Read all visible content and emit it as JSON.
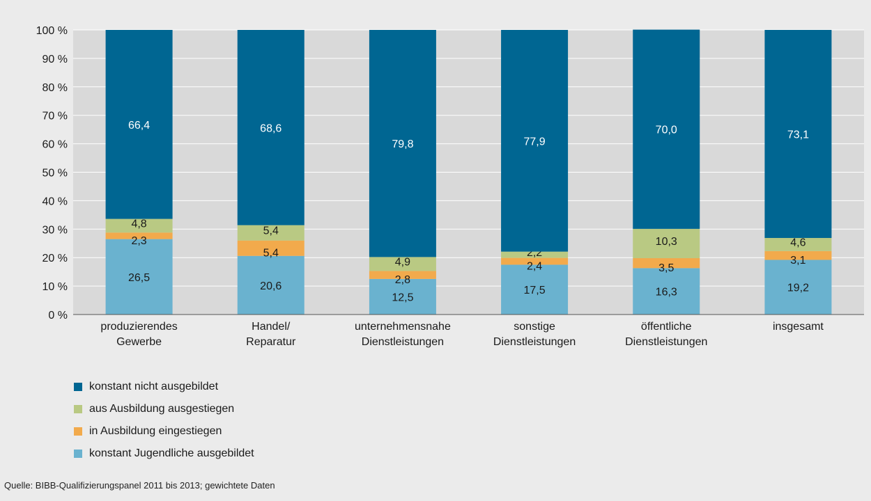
{
  "chart_data": {
    "type": "bar",
    "stacked": true,
    "categories": [
      [
        "produzierendes",
        "Gewerbe"
      ],
      [
        "Handel/",
        "Reparatur"
      ],
      [
        "unternehmensnahe",
        "Dienstleistungen"
      ],
      [
        "sonstige",
        "Dienstleistungen"
      ],
      [
        "öffentliche",
        "Dienstleistungen"
      ],
      [
        "insgesamt"
      ]
    ],
    "series": [
      {
        "name": "konstant Jugendliche ausgebildet",
        "color": "#6ab2cf",
        "values": [
          26.5,
          20.6,
          12.5,
          17.5,
          16.3,
          19.2
        ],
        "labels": [
          "26,5",
          "20,6",
          "12,5",
          "17,5",
          "16,3",
          "19,2"
        ]
      },
      {
        "name": "in Ausbildung eingestiegen",
        "color": "#f2aa4c",
        "values": [
          2.3,
          5.4,
          2.8,
          2.4,
          3.5,
          3.1
        ],
        "labels": [
          "2,3",
          "5,4",
          "2,8",
          "2,4",
          "3,5",
          "3,1"
        ]
      },
      {
        "name": "aus Ausbildung ausgestiegen",
        "color": "#b9c983",
        "values": [
          4.8,
          5.4,
          4.9,
          2.2,
          10.3,
          4.6
        ],
        "labels": [
          "4,8",
          "5,4",
          "4,9",
          "2,2",
          "10,3",
          "4,6"
        ]
      },
      {
        "name": "konstant nicht ausgebildet",
        "color": "#006692",
        "values": [
          66.4,
          68.6,
          79.8,
          77.9,
          70.0,
          73.1
        ],
        "labels": [
          "66,4",
          "68,6",
          "79,8",
          "77,9",
          "70,0",
          "73,1"
        ]
      }
    ],
    "yticks": [
      "0 %",
      "10 %",
      "20 %",
      "30 %",
      "40 %",
      "50 %",
      "60 %",
      "70 %",
      "80 %",
      "90 %",
      "100 %"
    ],
    "ylim": [
      0,
      100
    ],
    "grid": true,
    "legend_position": "bottom-left",
    "legend_order": [
      3,
      2,
      1,
      0
    ],
    "source": "Quelle: BIBB-Qualifizierungspanel 2011 bis 2013; gewichtete Daten"
  }
}
